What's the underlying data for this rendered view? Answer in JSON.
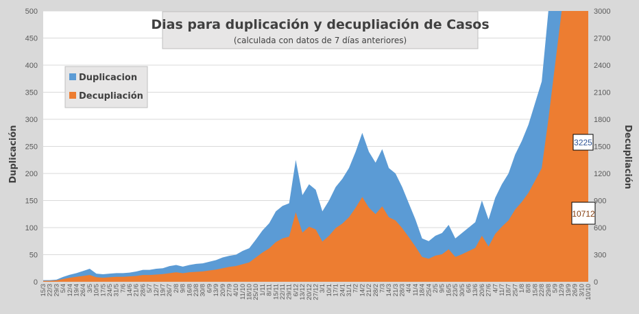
{
  "chart_data": {
    "type": "area",
    "title": "Dias para duplicación y decupliación de Casos",
    "subtitle": "(calculada con datos de 7 días anteriores)",
    "ylabel_left": "Duplicación",
    "ylabel_right": "Decupliación",
    "ylim_left": [
      0,
      500
    ],
    "ylim_right": [
      0,
      3000
    ],
    "yticks_left": [
      "0",
      "50",
      "100",
      "150",
      "200",
      "250",
      "300",
      "350",
      "400",
      "450",
      "500"
    ],
    "yticks_right": [
      "0",
      "300",
      "600",
      "900",
      "1200",
      "1500",
      "1800",
      "2100",
      "2400",
      "2700",
      "3000"
    ],
    "grid": true,
    "legend_position": "top-left",
    "categories": [
      "15/3",
      "22/3",
      "29/3",
      "5/4",
      "12/4",
      "19/4",
      "26/4",
      "3/5",
      "10/5",
      "17/5",
      "24/5",
      "31/5",
      "7/6",
      "14/6",
      "21/6",
      "28/6",
      "5/7",
      "12/7",
      "19/7",
      "26/7",
      "2/8",
      "9/8",
      "16/8",
      "23/8",
      "30/8",
      "6/9",
      "13/9",
      "20/9",
      "27/9",
      "4/10",
      "11/10",
      "18/10",
      "25/10",
      "1/11",
      "8/11",
      "15/11",
      "22/11",
      "29/11",
      "6/12",
      "13/12",
      "20/12",
      "27/12",
      "3/1",
      "10/1",
      "17/1",
      "24/1",
      "31/1",
      "7/2",
      "14/2",
      "21/2",
      "28/2",
      "7/3",
      "14/3",
      "21/3",
      "28/3",
      "4/4",
      "11/4",
      "18/4",
      "25/4",
      "2/5",
      "9/5",
      "16/5",
      "23/5",
      "30/5",
      "6/6",
      "13/6",
      "20/6",
      "27/6",
      "4/7",
      "11/7",
      "18/7",
      "25/7",
      "1/8",
      "8/8",
      "15/8",
      "22/8",
      "29/8",
      "5/9",
      "12/9",
      "19/9",
      "26/9",
      "3/10",
      "10/10"
    ],
    "series": [
      {
        "name": "Duplicacion",
        "color": "#5b9bd5",
        "axis": "left",
        "values": [
          3,
          3,
          4,
          9,
          13,
          16,
          20,
          24,
          15,
          14,
          15,
          16,
          16,
          17,
          19,
          22,
          22,
          24,
          25,
          29,
          31,
          28,
          31,
          33,
          34,
          37,
          40,
          45,
          48,
          50,
          57,
          62,
          78,
          95,
          108,
          130,
          140,
          145,
          225,
          160,
          180,
          170,
          130,
          150,
          175,
          190,
          210,
          240,
          275,
          240,
          220,
          245,
          210,
          200,
          175,
          145,
          115,
          80,
          75,
          85,
          90,
          105,
          80,
          90,
          100,
          110,
          150,
          115,
          155,
          180,
          200,
          235,
          260,
          290,
          330,
          370,
          500,
          500,
          500,
          500,
          500,
          500,
          500
        ]
      },
      {
        "name": "Decupliación",
        "color": "#ed7d31",
        "axis": "right",
        "values": [
          10,
          10,
          15,
          30,
          45,
          55,
          65,
          75,
          50,
          45,
          50,
          55,
          55,
          60,
          65,
          75,
          75,
          80,
          85,
          95,
          105,
          95,
          105,
          110,
          115,
          125,
          135,
          150,
          165,
          175,
          195,
          215,
          270,
          325,
          370,
          440,
          480,
          500,
          770,
          545,
          610,
          580,
          445,
          510,
          595,
          645,
          715,
          820,
          940,
          820,
          750,
          835,
          715,
          680,
          595,
          495,
          390,
          275,
          255,
          290,
          305,
          360,
          275,
          305,
          340,
          375,
          510,
          390,
          530,
          610,
          680,
          800,
          885,
          985,
          1120,
          1260,
          1800,
          2400,
          3000,
          3000,
          3000,
          3000,
          3000
        ]
      }
    ],
    "annotations": [
      {
        "text": "3225",
        "series": "Duplicacion",
        "color": "#2f5597"
      },
      {
        "text": "10712",
        "series": "Decupliación",
        "color": "#843c0c"
      }
    ]
  }
}
